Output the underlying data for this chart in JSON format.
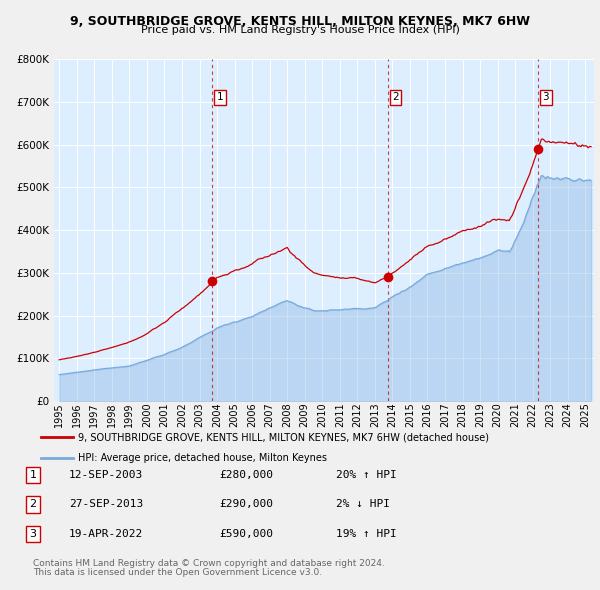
{
  "title": "9, SOUTHBRIDGE GROVE, KENTS HILL, MILTON KEYNES, MK7 6HW",
  "subtitle": "Price paid vs. HM Land Registry's House Price Index (HPI)",
  "fig_bg_color": "#f0f0f0",
  "plot_bg_color": "#ddeeff",
  "red_line_color": "#cc0000",
  "blue_line_color": "#7aaadd",
  "vline_color": "#cc0000",
  "grid_color": "#ffffff",
  "sale_dates": [
    2003.712,
    2013.74,
    2022.302
  ],
  "sale_prices": [
    280000,
    290000,
    590000
  ],
  "sale_labels": [
    "1",
    "2",
    "3"
  ],
  "sale_annotations": [
    {
      "num": "1",
      "date": "12-SEP-2003",
      "price": "£280,000",
      "pct": "20%",
      "dir": "↑",
      "hpi": "HPI"
    },
    {
      "num": "2",
      "date": "27-SEP-2013",
      "price": "£290,000",
      "pct": "2%",
      "dir": "↓",
      "hpi": "HPI"
    },
    {
      "num": "3",
      "date": "19-APR-2022",
      "price": "£590,000",
      "pct": "19%",
      "dir": "↑",
      "hpi": "HPI"
    }
  ],
  "legend_red": "9, SOUTHBRIDGE GROVE, KENTS HILL, MILTON KEYNES, MK7 6HW (detached house)",
  "legend_blue": "HPI: Average price, detached house, Milton Keynes",
  "footer1": "Contains HM Land Registry data © Crown copyright and database right 2024.",
  "footer2": "This data is licensed under the Open Government Licence v3.0.",
  "ylim": [
    0,
    800000
  ],
  "yticks": [
    0,
    100000,
    200000,
    300000,
    400000,
    500000,
    600000,
    700000,
    800000
  ],
  "xlim_start": 1994.7,
  "xlim_end": 2025.5
}
